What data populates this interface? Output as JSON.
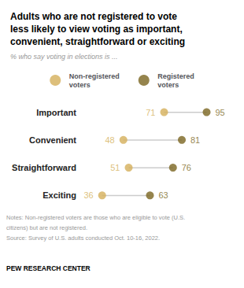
{
  "chart_data": {
    "type": "dumbbell",
    "title": "Adults who are not registered to vote\nless likely to view voting as important,\nconvenient, straightforward or exciting",
    "subtitle": "% who say voting in elections is ...",
    "categories": [
      "Important",
      "Convenient",
      "Straightforward",
      "Exciting"
    ],
    "series": [
      {
        "name": "Non-registered\nvoters",
        "color": "#d4af5a",
        "values": [
          71,
          48,
          51,
          36
        ]
      },
      {
        "name": "Registered\nvoters",
        "color": "#7a6520",
        "values": [
          95,
          81,
          76,
          63
        ]
      }
    ],
    "xlim": [
      25,
      105
    ],
    "tick_labels": "y",
    "grid": false,
    "data_labels": true,
    "annotations": [
      "Notes: Non-registered voters are those who are eligible to vote (U.S.",
      "citizens) but are not registered.",
      "Source: Survey of U.S. adults conducted Oct. 10-16, 2022.",
      "PEW RESEARCH CENTER"
    ]
  }
}
